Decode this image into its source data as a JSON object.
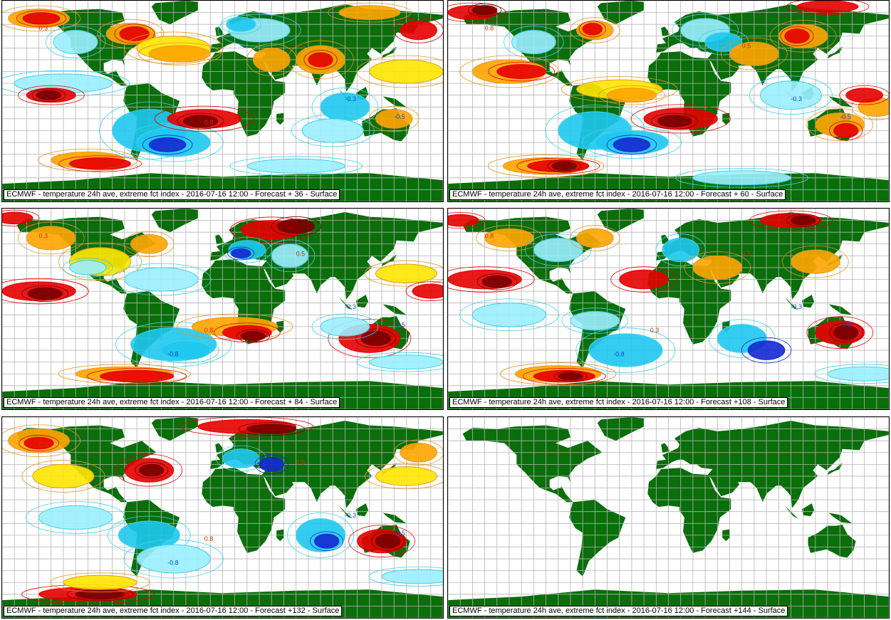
{
  "palette": {
    "land": "#0a6e0a",
    "ocean": "#ffffff",
    "grid": "#b4b4b4",
    "warm_contour": "#e8961e",
    "yellow": "#ffe600",
    "orange": "#ffa500",
    "red": "#e60000",
    "dark_red": "#780000",
    "cold_contour": "#3cd2eb",
    "light_cyan": "#9beeff",
    "cyan": "#1ec8f0",
    "blue": "#1428d2",
    "label_warm": "#c83200",
    "label_cold": "#0050c8"
  },
  "panels": [
    {
      "caption": "ECMWF - temperature 24h ave, extreme fct index - 2016-07-16 12:00 - Forecast + 36 - Surface",
      "labels": [
        "0.3",
        "-0.8",
        "0.8",
        "-0.3",
        "0.5",
        "-0.5"
      ]
    },
    {
      "caption": "ECMWF - temperature 24h ave, extreme fct index - 2016-07-16 12:00 - Forecast + 60 - Surface",
      "labels": [
        "0.8",
        "-0.8",
        "0.3",
        "-0.3",
        "0.5",
        "-0.5"
      ]
    },
    {
      "caption": "ECMWF - temperature 24h ave, extreme fct index - 2016-07-16 12:00 - Forecast + 84 - Surface",
      "labels": [
        "0.3",
        "-0.8",
        "0.8",
        "-0.3",
        "0.5",
        "-0.5"
      ]
    },
    {
      "caption": "ECMWF - temperature 24h ave, extreme fct index - 2016-07-16 12:00 - Forecast +108 - Surface",
      "labels": [
        "0.8",
        "-0.8",
        "0.3",
        "-0.3",
        "0.5",
        "-0.5"
      ]
    },
    {
      "caption": "ECMWF - temperature 24h ave, extreme fct index - 2016-07-16 12:00 - Forecast +132 - Surface",
      "labels": [
        "0.3",
        "-0.8",
        "0.8",
        "-0.3",
        "0.5",
        "-0.5"
      ]
    },
    {
      "caption": "ECMWF - temperature 24h ave, extreme fct index - 2016-07-16 12:00 - Forecast +144 - Surface",
      "labels": []
    }
  ]
}
